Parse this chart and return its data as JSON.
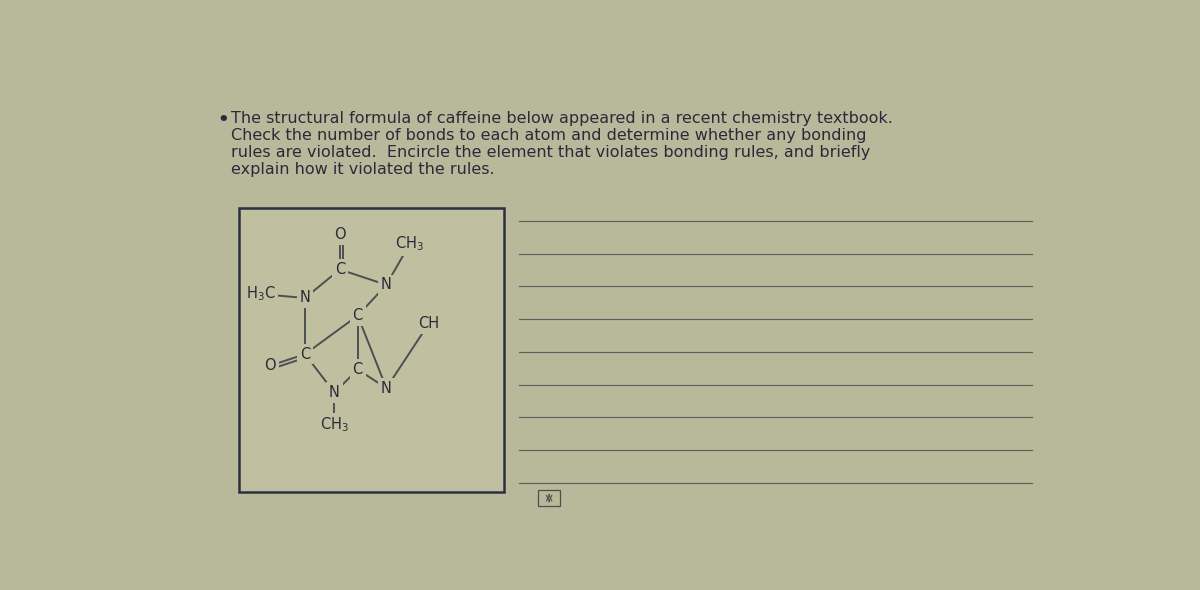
{
  "bg_color": "#b8b89a",
  "box_fill": "#c0c0a0",
  "text_color": "#2a2a3a",
  "line_color": "#4a5050",
  "bullet_text_line1": "The structural formula of caffeine below appeared in a recent chemistry textbook.",
  "bullet_text_line2": "Check the number of bonds to each atom and determine whether any bonding",
  "bullet_text_line3": "rules are violated.  Encircle the element that violates bonding rules, and briefly",
  "bullet_text_line4": "explain how it violated the rules.",
  "n_answer_lines": 9,
  "font_size_text": 11.5,
  "font_size_atom": 10.5
}
